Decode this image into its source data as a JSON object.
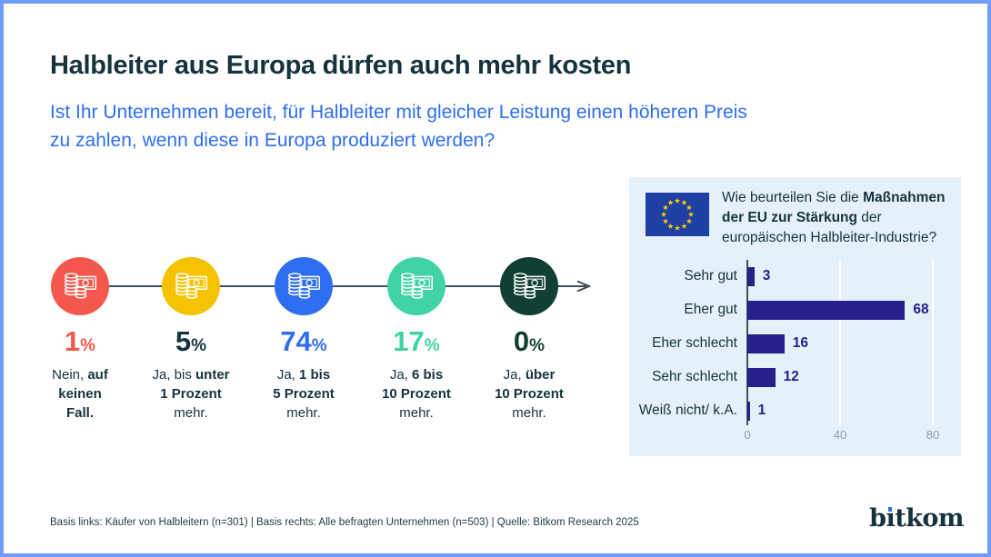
{
  "page": {
    "title": "Halbleiter aus Europa dürfen auch mehr kosten",
    "subtitle_lines": [
      "Ist Ihr Unternehmen bereit, für Halbleiter mit gleicher Leistung einen höheren Preis",
      "zu zahlen, wenn diese in Europa produziert werden?"
    ],
    "footer": "Basis links: Käufer von Halbleitern (n=301) | Basis rechts: Alle befragten Unternehmen (n=503) | Quelle: Bitkom Research 2025",
    "logo_text": "bitkom"
  },
  "colors": {
    "frame": "#6f9bfa",
    "title_text": "#16333d",
    "accent_blue": "#2e6ef2",
    "bar_navy": "#27208a",
    "panel_bg": "#e5f0f8",
    "eu_flag_blue": "#1e40a5",
    "eu_star_yellow": "#ffcc00",
    "step_red": "#f4584c",
    "step_yellow": "#f5c200",
    "step_blue": "#2e6ef2",
    "step_mint": "#41d3a5",
    "step_darkgreen": "#113f33"
  },
  "price_steps": {
    "items": [
      {
        "value": "1",
        "unit": "%",
        "circle_color": "#f4584c",
        "value_color": "#f4584c",
        "label_lines": [
          [
            {
              "t": "Nein, ",
              "b": false
            },
            {
              "t": "auf",
              "b": true
            }
          ],
          [
            {
              "t": "keinen",
              "b": true
            }
          ],
          [
            {
              "t": "Fall.",
              "b": true
            }
          ]
        ]
      },
      {
        "value": "5",
        "unit": "%",
        "circle_color": "#f5c200",
        "value_color": "#16333d",
        "label_lines": [
          [
            {
              "t": "Ja, bis ",
              "b": false
            },
            {
              "t": "unter",
              "b": true
            }
          ],
          [
            {
              "t": "1 Prozent",
              "b": true
            }
          ],
          [
            {
              "t": "mehr.",
              "b": false
            }
          ]
        ]
      },
      {
        "value": "74",
        "unit": "%",
        "circle_color": "#2e6ef2",
        "value_color": "#2e6ef2",
        "label_lines": [
          [
            {
              "t": "Ja, ",
              "b": false
            },
            {
              "t": "1 bis",
              "b": true
            }
          ],
          [
            {
              "t": "5 Prozent",
              "b": true
            }
          ],
          [
            {
              "t": "mehr.",
              "b": false
            }
          ]
        ]
      },
      {
        "value": "17",
        "unit": "%",
        "circle_color": "#41d3a5",
        "value_color": "#41d3a5",
        "label_lines": [
          [
            {
              "t": "Ja, ",
              "b": false
            },
            {
              "t": "6 bis",
              "b": true
            }
          ],
          [
            {
              "t": "10 Prozent",
              "b": true
            }
          ],
          [
            {
              "t": "mehr.",
              "b": false
            }
          ]
        ]
      },
      {
        "value": "0",
        "unit": "%",
        "circle_color": "#113f33",
        "value_color": "#113f33",
        "label_lines": [
          [
            {
              "t": "Ja, ",
              "b": false
            },
            {
              "t": "über",
              "b": true
            }
          ],
          [
            {
              "t": "10 Prozent",
              "b": true
            }
          ],
          [
            {
              "t": "mehr.",
              "b": false
            }
          ]
        ]
      }
    ]
  },
  "eu_panel": {
    "question_segments": [
      {
        "t": "Wie beurteilen Sie die ",
        "b": false
      },
      {
        "t": "Maßnahmen der EU zur Stärkung",
        "b": true
      },
      {
        "t": " der europäischen Halbleiter-Industrie?",
        "b": false
      }
    ],
    "bars": {
      "categories": [
        "Sehr gut",
        "Eher gut",
        "Eher schlecht",
        "Sehr schlecht",
        "Weiß nicht/ k.A."
      ],
      "values": [
        3,
        68,
        16,
        12,
        1
      ],
      "ticks": [
        0,
        40,
        80
      ],
      "max": 80
    }
  },
  "chart_data": [
    {
      "type": "bar",
      "title": "Ist Ihr Unternehmen bereit, für Halbleiter mit gleicher Leistung einen höheren Preis zu zahlen, wenn diese in Europa produziert werden?",
      "categories": [
        "Nein, auf keinen Fall.",
        "Ja, bis unter 1 Prozent mehr.",
        "Ja, 1 bis 5 Prozent mehr.",
        "Ja, 6 bis 10 Prozent mehr.",
        "Ja, über 10 Prozent mehr."
      ],
      "values": [
        1,
        5,
        74,
        17,
        0
      ],
      "unit": "%",
      "note": "Basis links: Käufer von Halbleitern (n=301)"
    },
    {
      "type": "bar",
      "orientation": "horizontal",
      "title": "Wie beurteilen Sie die Maßnahmen der EU zur Stärkung der europäischen Halbleiter-Industrie?",
      "categories": [
        "Sehr gut",
        "Eher gut",
        "Eher schlecht",
        "Sehr schlecht",
        "Weiß nicht/ k.A."
      ],
      "values": [
        3,
        68,
        16,
        12,
        1
      ],
      "xlim": [
        0,
        80
      ],
      "xticks": [
        0,
        40,
        80
      ],
      "grid": true,
      "note": "Basis rechts: Alle befragten Unternehmen (n=503)"
    }
  ]
}
